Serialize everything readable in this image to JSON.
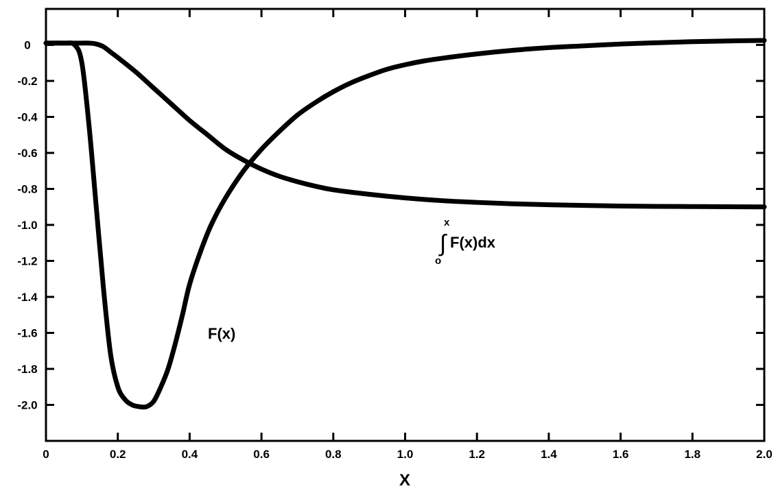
{
  "chart_data": {
    "type": "line",
    "title": "",
    "xlabel": "X",
    "ylabel": "",
    "xlim": [
      0,
      2.0
    ],
    "ylim": [
      -2.2,
      0.2
    ],
    "grid": false,
    "x_ticks": [
      0,
      0.2,
      0.4,
      0.6,
      0.8,
      1.0,
      1.2,
      1.4,
      1.6,
      1.8,
      2.0
    ],
    "x_tick_labels": [
      "0",
      "0.2",
      "0.4",
      "0.6",
      "0.8",
      "1.0",
      "1.2",
      "1.4",
      "1.6",
      "1.8",
      "2.0"
    ],
    "y_ticks": [
      0,
      -0.2,
      -0.4,
      -0.6,
      -0.8,
      -1.0,
      -1.2,
      -1.4,
      -1.6,
      -1.8,
      -2.0
    ],
    "y_tick_labels": [
      "0",
      "-0.2",
      "-0.4",
      "-0.6",
      "-0.8",
      "-1.0",
      "-1.2",
      "-1.4",
      "-1.6",
      "-1.8",
      "-2.0"
    ],
    "series": [
      {
        "name": "F(x)",
        "x": [
          0,
          0.05,
          0.08,
          0.1,
          0.12,
          0.14,
          0.16,
          0.18,
          0.2,
          0.22,
          0.24,
          0.26,
          0.28,
          0.3,
          0.32,
          0.34,
          0.36,
          0.38,
          0.4,
          0.43,
          0.46,
          0.5,
          0.55,
          0.6,
          0.65,
          0.7,
          0.75,
          0.8,
          0.85,
          0.9,
          0.95,
          1.0,
          1.05,
          1.1,
          1.2,
          1.3,
          1.4,
          1.5,
          1.6,
          1.7,
          1.8,
          1.9,
          2.0
        ],
        "y": [
          0.01,
          0.01,
          0.0,
          -0.1,
          -0.45,
          -0.9,
          -1.35,
          -1.72,
          -1.9,
          -1.97,
          -2.0,
          -2.01,
          -2.01,
          -1.98,
          -1.9,
          -1.8,
          -1.66,
          -1.5,
          -1.33,
          -1.15,
          -1.0,
          -0.85,
          -0.7,
          -0.58,
          -0.48,
          -0.39,
          -0.32,
          -0.26,
          -0.21,
          -0.17,
          -0.135,
          -0.11,
          -0.09,
          -0.075,
          -0.05,
          -0.03,
          -0.015,
          -0.005,
          0.005,
          0.012,
          0.018,
          0.022,
          0.025
        ]
      },
      {
        "name": "∫F(x)dx",
        "x": [
          0,
          0.08,
          0.12,
          0.14,
          0.16,
          0.18,
          0.2,
          0.25,
          0.3,
          0.35,
          0.4,
          0.45,
          0.5,
          0.55,
          0.6,
          0.65,
          0.7,
          0.75,
          0.8,
          0.9,
          1.0,
          1.1,
          1.2,
          1.3,
          1.4,
          1.5,
          1.6,
          1.7,
          1.8,
          1.9,
          2.0
        ],
        "y": [
          0.01,
          0.01,
          0.01,
          0.005,
          -0.01,
          -0.04,
          -0.07,
          -0.15,
          -0.24,
          -0.33,
          -0.42,
          -0.5,
          -0.58,
          -0.64,
          -0.69,
          -0.73,
          -0.76,
          -0.785,
          -0.805,
          -0.83,
          -0.85,
          -0.865,
          -0.875,
          -0.883,
          -0.888,
          -0.892,
          -0.895,
          -0.897,
          -0.898,
          -0.899,
          -0.9
        ]
      }
    ],
    "annotations": {
      "fx_label": "F(x)",
      "integral_body": "F(x)dx",
      "integral_sign": "∫",
      "integral_upper": "x",
      "integral_lower": "o"
    }
  }
}
